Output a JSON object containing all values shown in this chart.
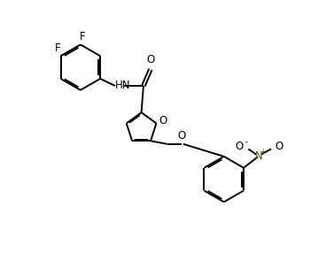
{
  "background_color": "#ffffff",
  "line_color": "#000000",
  "figsize": [
    3.68,
    3.12
  ],
  "dpi": 100,
  "bond_width": 1.4,
  "font_size": 8.5,
  "xlim": [
    -0.2,
    6.2
  ],
  "ylim": [
    -3.8,
    3.2
  ]
}
